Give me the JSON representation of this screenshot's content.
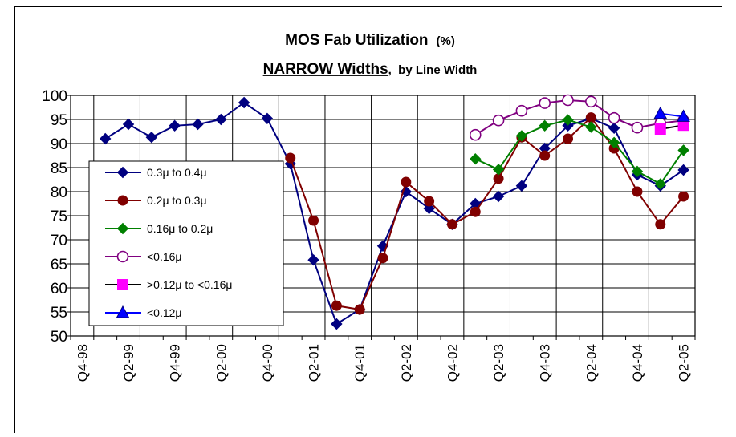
{
  "chart_data": {
    "type": "line",
    "title": "MOS Fab Utilization",
    "title_unit": "(%)",
    "subtitle": "NARROW Widths",
    "subtitle_suffix": ",  by Line Width",
    "categories": [
      "Q4-98",
      null,
      "Q2-99",
      null,
      "Q4-99",
      null,
      "Q2-00",
      null,
      "Q4-00",
      null,
      "Q2-01",
      null,
      "Q4-01",
      null,
      "Q2-02",
      null,
      "Q4-02",
      null,
      "Q2-03",
      null,
      "Q4-03",
      null,
      "Q2-04",
      null,
      "Q4-04",
      null,
      "Q2-05"
    ],
    "series": [
      {
        "name": "0.3μ to 0.4μ",
        "color": "#000080",
        "marker": "diamond",
        "values": [
          null,
          91,
          94,
          91.3,
          93.7,
          94,
          95,
          98.5,
          95.2,
          85.8,
          65.8,
          52.5,
          55.5,
          68.7,
          80,
          76.5,
          73.2,
          77.5,
          79,
          81.2,
          89,
          93.7,
          95.2,
          93.2,
          83.5,
          81.2,
          84.5
        ]
      },
      {
        "name": "0.2μ to 0.3μ",
        "color": "#800000",
        "marker": "circle",
        "values": [
          null,
          null,
          null,
          null,
          null,
          null,
          null,
          null,
          null,
          87,
          74,
          56.3,
          55.5,
          66.2,
          82,
          78,
          73.2,
          75.8,
          82.7,
          91.3,
          87.5,
          91,
          95.4,
          89,
          80,
          73.2,
          79
        ]
      },
      {
        "name": "0.16μ to 0.2μ",
        "color": "#008000",
        "marker": "diamond",
        "values": [
          null,
          null,
          null,
          null,
          null,
          null,
          null,
          null,
          null,
          null,
          null,
          null,
          null,
          null,
          null,
          null,
          null,
          86.8,
          84.6,
          91.6,
          93.7,
          94.9,
          93.4,
          90.2,
          84.2,
          81.6,
          88.6
        ]
      },
      {
        "name": "<0.16μ",
        "color": "#800080",
        "marker": "open-circle",
        "values": [
          null,
          null,
          null,
          null,
          null,
          null,
          null,
          null,
          null,
          null,
          null,
          null,
          null,
          null,
          null,
          null,
          null,
          91.8,
          94.8,
          96.8,
          98.4,
          99,
          98.7,
          95.3,
          93.3,
          94.2,
          94.8
        ]
      },
      {
        "name": ">0.12μ to <0.16μ",
        "color": "#ff00ff",
        "line_color": "#000000",
        "marker": "square",
        "values": [
          null,
          null,
          null,
          null,
          null,
          null,
          null,
          null,
          null,
          null,
          null,
          null,
          null,
          null,
          null,
          null,
          null,
          null,
          null,
          null,
          null,
          null,
          null,
          null,
          null,
          93,
          93.8
        ]
      },
      {
        "name": "<0.12μ",
        "color": "#0000ff",
        "marker": "triangle",
        "values": [
          null,
          null,
          null,
          null,
          null,
          null,
          null,
          null,
          null,
          null,
          null,
          null,
          null,
          null,
          null,
          null,
          null,
          null,
          null,
          null,
          null,
          null,
          null,
          null,
          null,
          96.2,
          95.6
        ]
      }
    ],
    "ylim": [
      50,
      100
    ],
    "yticks": [
      50,
      55,
      60,
      65,
      70,
      75,
      80,
      85,
      90,
      95,
      100
    ],
    "grid": true,
    "legend": "left"
  }
}
